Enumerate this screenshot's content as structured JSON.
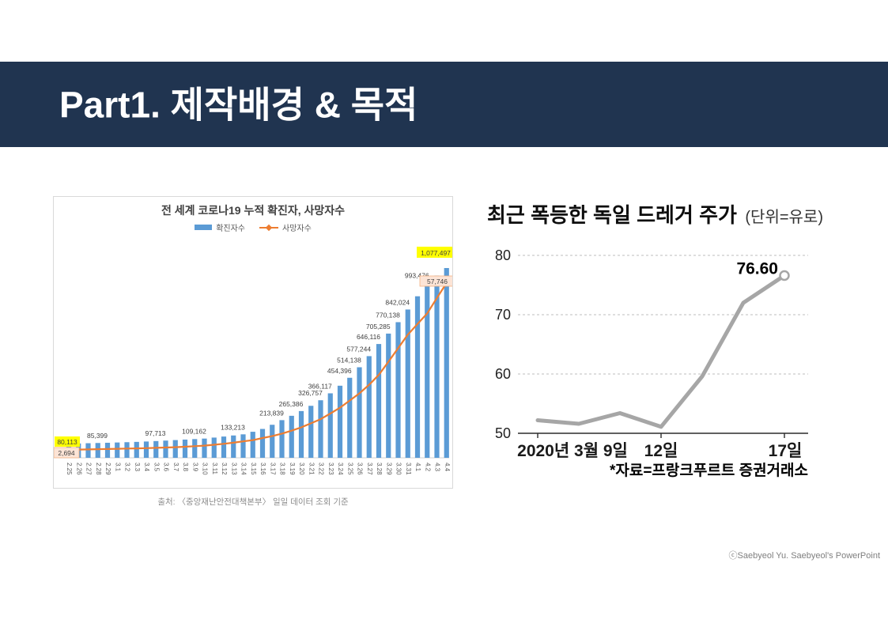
{
  "slide": {
    "title": "Part1. 제작배경 & 목적",
    "footer": "ⓒSaebyeol Yu. Saebyeol's PowerPoint"
  },
  "colors": {
    "navy": "#203450",
    "bar_blue": "#5B9BD5",
    "line_orange": "#ED7D31",
    "highlight_yellow": "#FFFF00",
    "highlight_peach": "#FCE4D6",
    "peach_border": "#F4B183",
    "drager_line_gray": "#A6A6A6",
    "label_gray": "#3f3f3f",
    "tick_gray": "#595959"
  },
  "chart_data": [
    {
      "id": "covid-cumulative",
      "type": "bar",
      "title": "전 세계 코로나19 누적 확진자, 사망자수",
      "source_caption": "출처: 〈중앙재난안전대책본부〉 일일 데이터 조회 기준",
      "legend": [
        {
          "label": "확진자수",
          "color": "#5B9BD5",
          "swatch": "bar"
        },
        {
          "label": "사망자수",
          "color": "#ED7D31",
          "swatch": "line"
        }
      ],
      "categories": [
        "2.25",
        "2.26",
        "2.27",
        "2.28",
        "2.29",
        "3.1",
        "3.2",
        "3.3",
        "3.4",
        "3.5",
        "3.6",
        "3.7",
        "3.8",
        "3.9",
        "3.10",
        "3.11",
        "3.12",
        "3.13",
        "3.14",
        "3.15",
        "3.16",
        "3.17",
        "3.18",
        "3.19",
        "3.20",
        "3.21",
        "3.22",
        "3.23",
        "3.24",
        "3.25",
        "3.26",
        "3.27",
        "3.28",
        "3.29",
        "3.30",
        "3.31",
        "4.1",
        "4.2",
        "4.3",
        "4.4"
      ],
      "series": [
        {
          "name": "확진자수",
          "type": "bar",
          "values": [
            80113,
            81400,
            82800,
            84100,
            85399,
            86900,
            88600,
            90400,
            92500,
            95000,
            97713,
            100600,
            103400,
            106300,
            109162,
            114800,
            120700,
            126800,
            133213,
            147800,
            163900,
            187500,
            213839,
            238500,
            265386,
            295200,
            326757,
            366117,
            409300,
            454396,
            514138,
            577244,
            646116,
            705285,
            770138,
            842024,
            917200,
            993476,
            1034800,
            1077497
          ]
        },
        {
          "name": "사망자수",
          "type": "line",
          "values": [
            2694,
            2720,
            2780,
            2840,
            2910,
            2980,
            3050,
            3120,
            3200,
            3290,
            3390,
            3500,
            3650,
            3830,
            4020,
            4300,
            4620,
            4980,
            5430,
            5830,
            6520,
            7170,
            7990,
            8970,
            10050,
            11400,
            12780,
            14620,
            16560,
            18920,
            21300,
            24100,
            27370,
            31740,
            36240,
            40710,
            44200,
            47700,
            52800,
            57746
          ]
        }
      ],
      "labels": [
        {
          "index": 0,
          "text": "80,113",
          "bg": "yellow"
        },
        {
          "index": 4,
          "text": "85,399"
        },
        {
          "index": 10,
          "text": "97,713"
        },
        {
          "index": 14,
          "text": "109,162"
        },
        {
          "index": 18,
          "text": "133,213"
        },
        {
          "index": 22,
          "text": "213,839"
        },
        {
          "index": 24,
          "text": "265,386"
        },
        {
          "index": 26,
          "text": "326,757"
        },
        {
          "index": 27,
          "text": "366,117"
        },
        {
          "index": 29,
          "text": "454,396"
        },
        {
          "index": 30,
          "text": "514,138"
        },
        {
          "index": 31,
          "text": "577,244"
        },
        {
          "index": 32,
          "text": "646,116"
        },
        {
          "index": 33,
          "text": "705,285"
        },
        {
          "index": 34,
          "text": "770,138"
        },
        {
          "index": 35,
          "text": "842,024"
        },
        {
          "index": 37,
          "text": "993,476"
        },
        {
          "index": 39,
          "text": "1,077,497",
          "bg": "yellow"
        }
      ],
      "death_labels": {
        "start": "2,694",
        "end": "57,746",
        "bg": "peach"
      },
      "axis": {
        "primary_max": 1100000,
        "secondary_max": 64000,
        "gridlines": false
      }
    },
    {
      "id": "drager-stock",
      "type": "line",
      "title": "최근 폭등한 독일 드레거 주가",
      "title_unit": "(단위=유로)",
      "source": "*자료=프랑크푸르트 증권거래소",
      "y_ticks": [
        "80",
        "70",
        "60",
        "50"
      ],
      "ylim": [
        50,
        80
      ],
      "x_tick_labels": [
        "2020년 3월 9일",
        "12일",
        "17일"
      ],
      "x_tick_point_index": [
        0,
        3,
        6
      ],
      "values": [
        52.2,
        51.6,
        53.4,
        51.1,
        59.6,
        72.0,
        76.6
      ],
      "point_label": {
        "text": "76.60",
        "point_index": 6
      },
      "legend_position": "none",
      "grid": "dashed-horizontal"
    }
  ]
}
